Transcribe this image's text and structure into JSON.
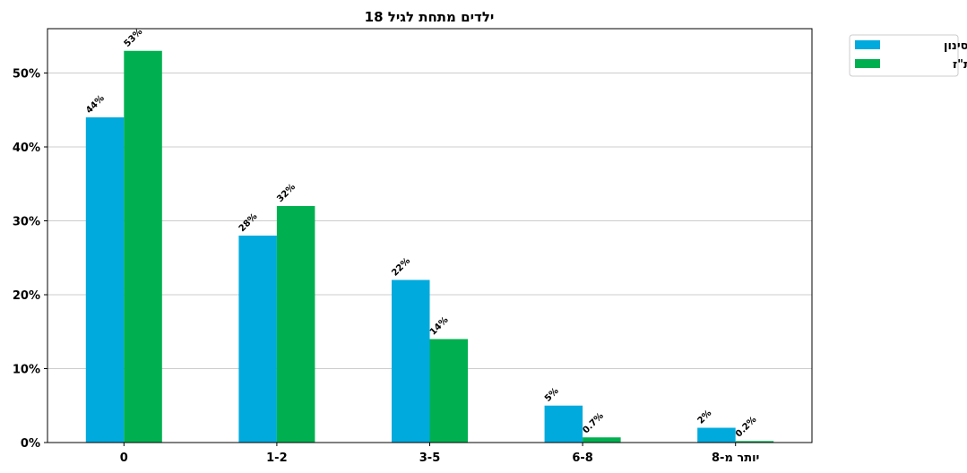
{
  "chart_data": {
    "type": "bar",
    "title": "ילדים מתחת לגיל 18",
    "xlabel": "",
    "ylabel": "",
    "categories": [
      "0",
      "1-2",
      "3-5",
      "6-8",
      "יותר מ-8"
    ],
    "series": [
      {
        "name": "כלל סינון",
        "color": "#00AADD",
        "values": [
          44,
          28,
          22,
          5,
          2
        ],
        "labels": [
          "44%",
          "28%",
          "22%",
          "5%",
          "2%"
        ]
      },
      {
        "name": "רשימת ת\"ז",
        "color": "#00B050",
        "values": [
          53,
          32,
          14,
          0.7,
          0.2
        ],
        "labels": [
          "53%",
          "32%",
          "14%",
          "0.7%",
          "0.2%"
        ]
      }
    ],
    "ylim": [
      0,
      56
    ],
    "yticks": [
      0,
      10,
      20,
      30,
      40,
      50
    ],
    "ytick_labels": [
      "0%",
      "10%",
      "20%",
      "30%",
      "40%",
      "50%"
    ],
    "grid": true,
    "legend_position": "outside-top-right"
  }
}
